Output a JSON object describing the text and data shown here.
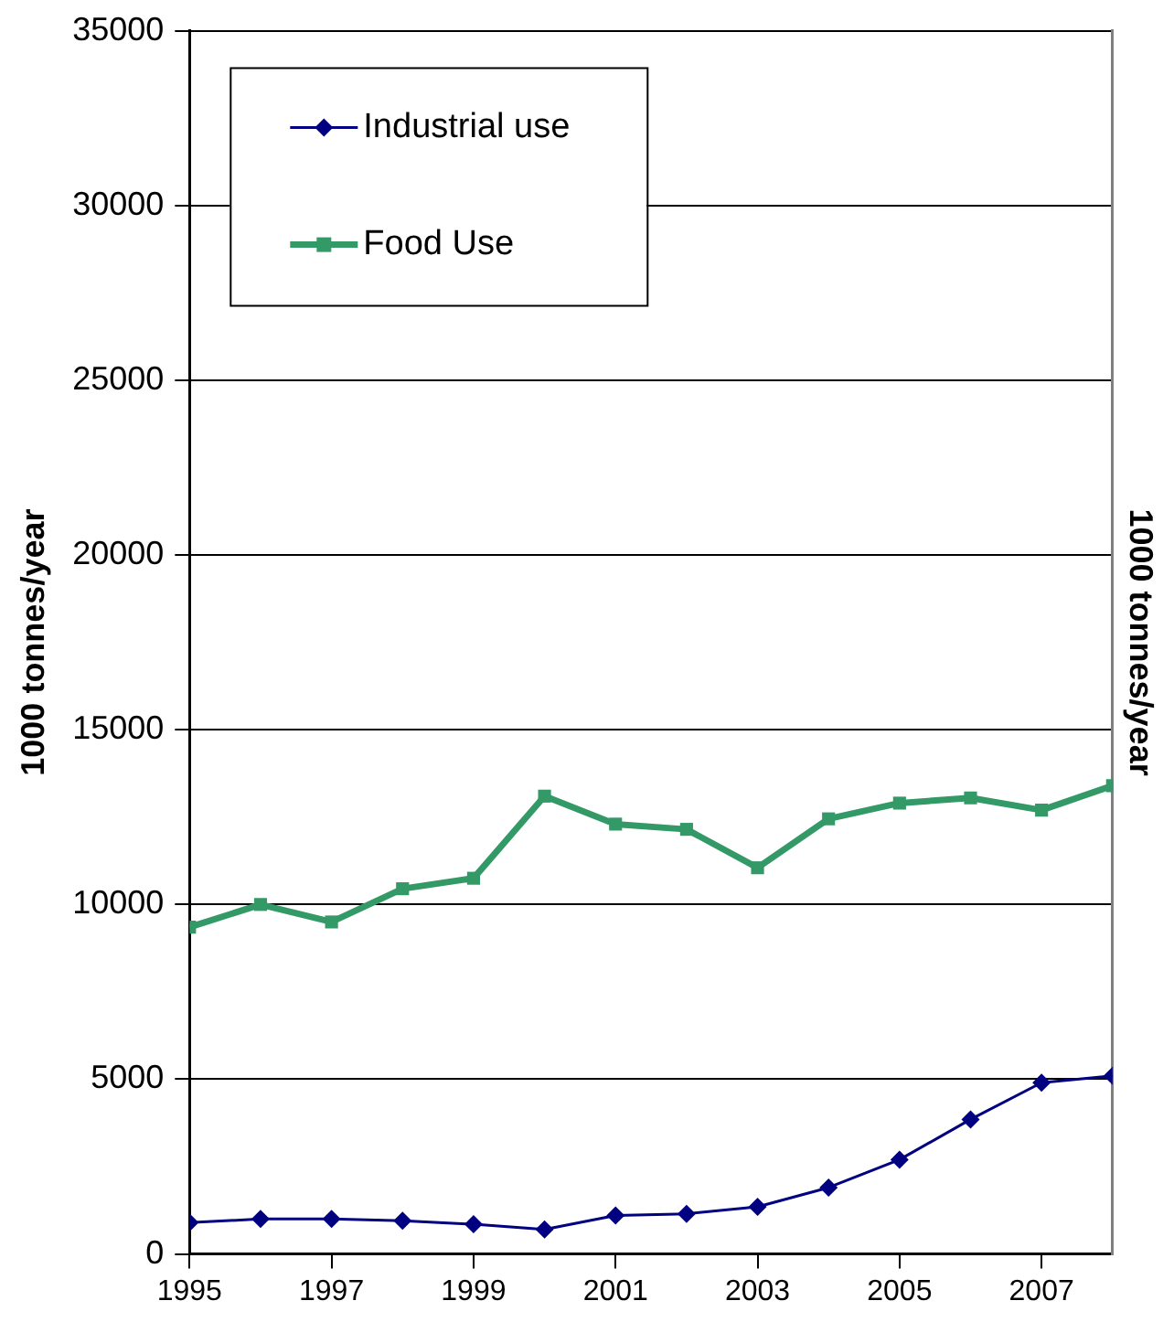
{
  "chart_data": {
    "type": "line",
    "ylabel": "1000 tonnes/year",
    "y2label": "1000 tonnes/year",
    "x": [
      1995,
      1996,
      1997,
      1998,
      1999,
      2000,
      2001,
      2002,
      2003,
      2004,
      2005,
      2006,
      2007,
      2008
    ],
    "xlim": [
      1995,
      2008
    ],
    "xticks": [
      1995,
      1997,
      1999,
      2001,
      2003,
      2005,
      2007
    ],
    "ylim": [
      0,
      35000
    ],
    "yticks": [
      0,
      5000,
      10000,
      15000,
      20000,
      25000,
      30000,
      35000
    ],
    "grid": "y",
    "legend": "top left",
    "line_style": "solid",
    "series": [
      {
        "name": "Industrial use",
        "color": "#000080",
        "marker": "diamond",
        "values": [
          900,
          1000,
          1000,
          950,
          850,
          700,
          1100,
          1150,
          1350,
          1900,
          2700,
          3850,
          4900,
          5100
        ]
      },
      {
        "name": "Food Use",
        "color": "#339966",
        "marker": "square",
        "values": [
          9350,
          10000,
          9500,
          10450,
          10750,
          13100,
          12300,
          12150,
          11050,
          12450,
          12900,
          13050,
          12700,
          13400
        ]
      }
    ]
  }
}
